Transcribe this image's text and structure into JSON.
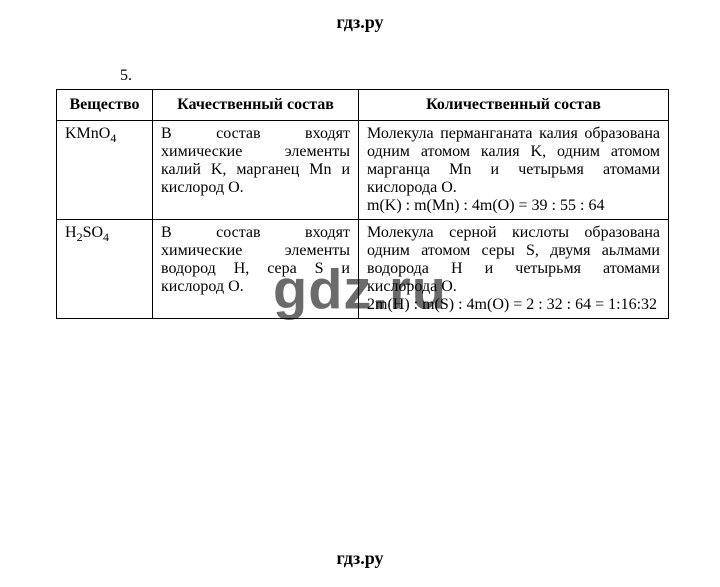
{
  "site": {
    "logo": "гдз.ру",
    "watermark": "gdz.ru"
  },
  "exercise": {
    "number": "5."
  },
  "table": {
    "headers": [
      "Вещество",
      "Качественный состав",
      "Количественный состав"
    ],
    "rows": [
      {
        "substance_html": "KMnO<span class=\"sub\">4</span>",
        "qualitative": "В состав входят химические элементы калий K, марганец Mn и кислород O.",
        "quantitative_p1": "Молекула перманганата калия образована одним атомом калия K, одним атомом марганца Mn и четырьмя атомами кислорода O.",
        "quantitative_p2": "m(K) : m(Mn) : 4m(O) = 39 : 55 : 64"
      },
      {
        "substance_html": "H<span class=\"sub\">2</span>SO<span class=\"sub\">4</span>",
        "qualitative": "В состав входят химические элементы водород H, сера S и кислород O.",
        "quantitative_p1": "Молекула серной кислоты образована одним атомом серы S, двумя аьлмами водорода H и четырьмя атомами кислорода O.",
        "quantitative_p2": "2m(H) : m(S) : 4m(O) = 2 : 32 : 64 = 1:16:32"
      }
    ]
  }
}
